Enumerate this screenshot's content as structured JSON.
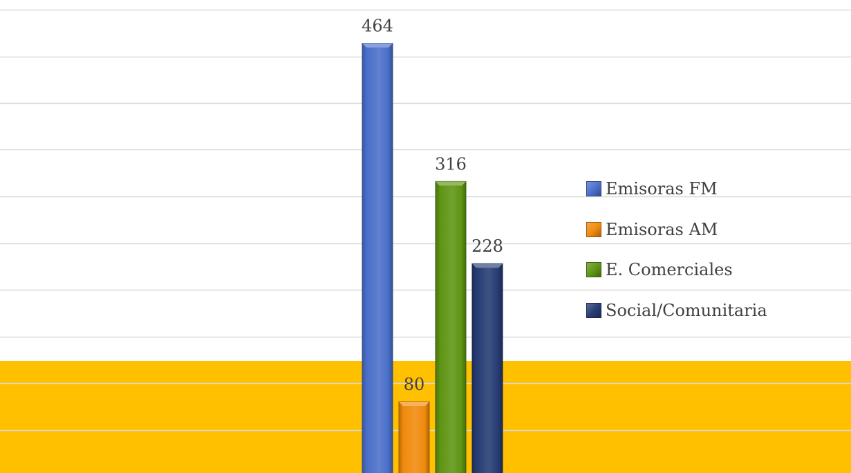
{
  "colors": {
    "background": "#ffffff",
    "band": "#ffc000",
    "gridline": "#d9d9d9",
    "label": "#404040"
  },
  "chart_data": {
    "type": "bar",
    "categories": [
      "Emisoras FM",
      "Emisoras AM",
      "E. Comerciales",
      "Social/Comunitaria"
    ],
    "values": [
      464,
      80,
      316,
      228
    ],
    "colors": [
      "#4a6fc9",
      "#f08a0c",
      "#5e9413",
      "#253b72"
    ],
    "title": "",
    "xlabel": "",
    "ylabel": "",
    "ylim": [
      0,
      500
    ],
    "grid": true,
    "legend_position": "right"
  },
  "legend": {
    "items": [
      {
        "label": "Emisoras FM",
        "color": "#4a6fc9"
      },
      {
        "label": "Emisoras AM",
        "color": "#f08a0c"
      },
      {
        "label": "E. Comerciales",
        "color": "#5e9413"
      },
      {
        "label": "Social/Comunitaria",
        "color": "#253b72"
      }
    ]
  }
}
